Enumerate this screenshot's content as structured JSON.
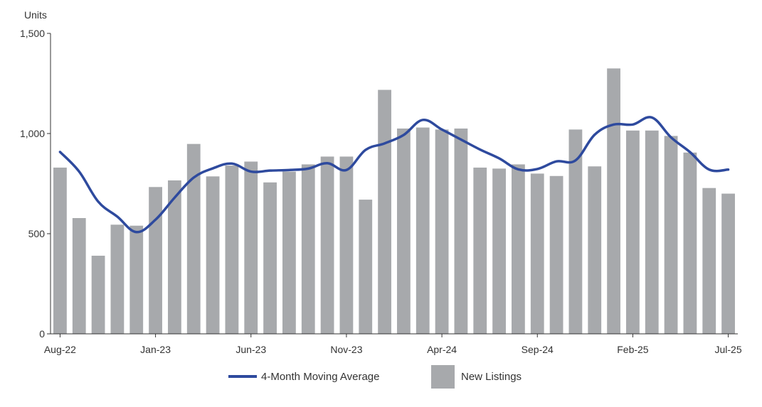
{
  "chart_data": {
    "type": "bar",
    "title": "",
    "xlabel": "",
    "ylabel": "Units",
    "ylim": [
      0,
      1500
    ],
    "yticks": [
      "0",
      "500",
      "1,000",
      "1,500"
    ],
    "xtick_labels": [
      "Aug-22",
      "Jan-23",
      "Jun-23",
      "Nov-23",
      "Apr-24",
      "Sep-24",
      "Feb-25",
      "Jul-25"
    ],
    "categories": [
      "Aug-22",
      "Sep-22",
      "Oct-22",
      "Nov-22",
      "Dec-22",
      "Jan-23",
      "Feb-23",
      "Mar-23",
      "Apr-23",
      "May-23",
      "Jun-23",
      "Jul-23",
      "Aug-23",
      "Sep-23",
      "Oct-23",
      "Nov-23",
      "Dec-23",
      "Jan-24",
      "Feb-24",
      "Mar-24",
      "Apr-24",
      "May-24",
      "Jun-24",
      "Jul-24",
      "Aug-24",
      "Sep-24",
      "Oct-24",
      "Nov-24",
      "Dec-24",
      "Jan-25",
      "Feb-25",
      "Mar-25",
      "Apr-25",
      "May-25",
      "Jun-25",
      "Jul-25"
    ],
    "series": [
      {
        "name": "New Listings",
        "type": "bar",
        "color": "#a7a9ac",
        "values": [
          830,
          578,
          390,
          545,
          540,
          733,
          766,
          948,
          786,
          840,
          860,
          756,
          810,
          846,
          885,
          885,
          670,
          1218,
          1025,
          1030,
          1020,
          1025,
          830,
          825,
          846,
          800,
          788,
          1020,
          836,
          1325,
          1015,
          1015,
          988,
          905,
          728,
          700
        ]
      },
      {
        "name": "4-Month Moving Average",
        "type": "line",
        "color": "#2e4a9e",
        "values": [
          908,
          810,
          660,
          585,
          508,
          570,
          680,
          780,
          826,
          850,
          810,
          815,
          818,
          825,
          852,
          818,
          918,
          951,
          993,
          1068,
          1020,
          970,
          920,
          876,
          821,
          823,
          861,
          866,
          994,
          1045,
          1045,
          1080,
          981,
          907,
          820,
          820
        ]
      }
    ],
    "legend": {
      "position": "bottom-center",
      "items": [
        {
          "label": "4-Month Moving Average",
          "symbol": "line",
          "color": "#2e4a9e"
        },
        {
          "label": "New Listings",
          "symbol": "box",
          "color": "#a7a9ac"
        }
      ]
    },
    "grid": false
  }
}
